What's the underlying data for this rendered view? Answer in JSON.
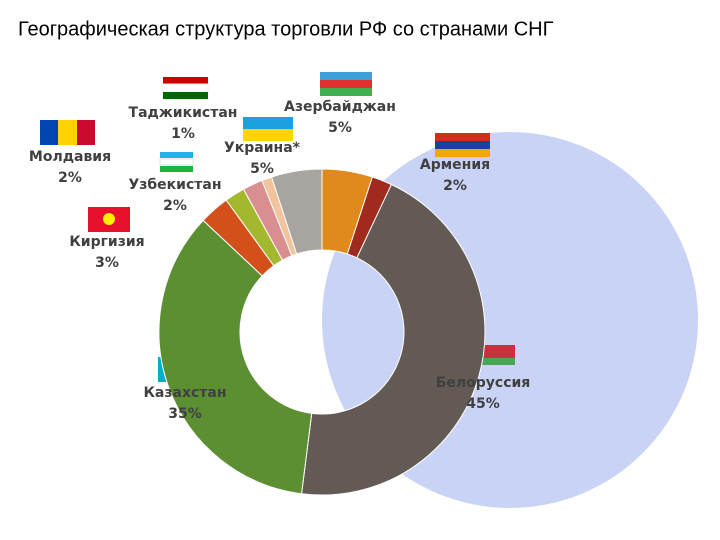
{
  "chart_data": {
    "type": "pie",
    "donut": true,
    "title": "Географическая структура торговли РФ со странами СНГ",
    "categories": [
      "Азербайджан",
      "Армения",
      "Белоруссия",
      "Казахстан",
      "Киргизия",
      "Узбекистан",
      "Молдавия",
      "Таджикистан",
      "Украина*"
    ],
    "values": [
      5,
      2,
      45,
      35,
      3,
      2,
      2,
      1,
      5
    ],
    "value_labels": [
      "5%",
      "2%",
      "45%",
      "35%",
      "3%",
      "2%",
      "2%",
      "1%",
      "5%"
    ],
    "colors": [
      "#e08a1e",
      "#a02a1e",
      "#645a55",
      "#5b8f32",
      "#d4501a",
      "#a3b82e",
      "#d98f8f",
      "#f2c49b",
      "#a8a4a0"
    ]
  }
}
